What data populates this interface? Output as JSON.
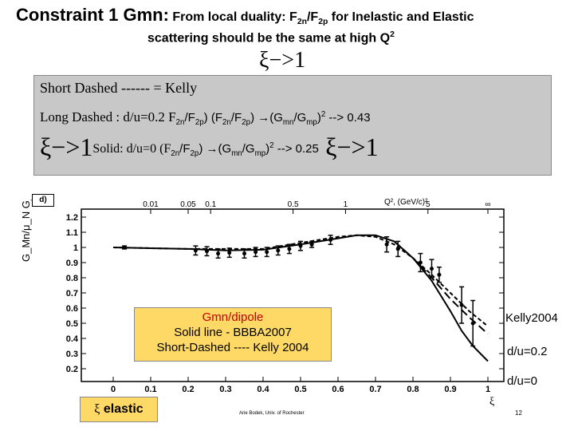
{
  "header": {
    "title_main": "Constraint 1 Gmn:",
    "title_rest": "From local duality: F",
    "sub_2n": "2n",
    "slash_f": "/F",
    "sub_2p": "2p",
    "title_end": " for Inelastic and Elastic",
    "subtitle": "scattering should be the same at high Q",
    "subtitle_sup": "2",
    "xi_arrow": "ξ−>1"
  },
  "info_box": {
    "short_dashed": "Short Dashed ------ = Kelly",
    "long_prefix": "Long Dashed : d/u=0.2 F",
    "long_mid1": "/F",
    "long_mid2": ") (F",
    "long_mid3": "/F",
    "long_mid4": ") →(G",
    "long_mid5": "/G",
    "long_mid6": ")",
    "long_end": " --> 0.43",
    "solid_xi": "ξ−>1",
    "solid_prefix": "Solid:   d/u=0 (F",
    "solid_mid1": "/F",
    "solid_mid2": ") →(G",
    "solid_mid3": "/G",
    "solid_mid4": ")",
    "solid_end": " --> 0.25",
    "solid_xi_end": "ξ−>1",
    "sub_2n": "2n",
    "sub_2p": "2p",
    "sub_mn": "mn",
    "sub_mp": "mp",
    "sup_2": "2"
  },
  "legend": {
    "title": "Gmn/dipole",
    "line1": "Solid line - BBBA2007",
    "line2": "Short-Dashed ---- Kelly 2004"
  },
  "curve_labels": {
    "kelly": "Kelly2004",
    "du02": "d/u=0.2",
    "du0": "d/u=0"
  },
  "xi_elastic": {
    "xi": "ξ",
    "label": " elastic"
  },
  "footer": {
    "credit": "Arie Bodek, Univ. of Rochester",
    "page": "12",
    "xi_axis": "ξ"
  },
  "panel_label": "d)",
  "q2_label": "Q²,  (GeV/c)²",
  "ylabel": "G_Mn/μ_N G_D",
  "colors": {
    "info_box_bg": "#c8c8c8",
    "legend_bg": "#ffd966",
    "legend_title": "#c00000"
  },
  "chart_data": {
    "type": "line",
    "xlabel": "",
    "ylabel": "G_Mn/μ_N G_D",
    "xlim": [
      0,
      1
    ],
    "ylim": [
      0.2,
      1.2
    ],
    "x_ticks": [
      "0",
      "0.1",
      "0.2",
      "0.3",
      "0.4",
      "0.5",
      "0.6",
      "0.7",
      "0.8",
      "0.9",
      "1"
    ],
    "y_ticks": [
      "0.2",
      "0.3",
      "0.4",
      "0.5",
      "0.6",
      "0.7",
      "0.8",
      "0.9",
      "1",
      "1.1",
      "1.2"
    ],
    "top_axis_ticks": [
      {
        "label": "0.01",
        "xi": 0.1
      },
      {
        "label": "0.05",
        "xi": 0.2
      },
      {
        "label": "0.1",
        "xi": 0.26
      },
      {
        "label": "0.5",
        "xi": 0.48
      },
      {
        "label": "1",
        "xi": 0.62
      },
      {
        "label": "5",
        "xi": 0.84
      },
      {
        "label": "∞",
        "xi": 1.0
      }
    ],
    "series": [
      {
        "name": "BBBA2007",
        "style": "solid",
        "x": [
          0.0,
          0.1,
          0.2,
          0.3,
          0.4,
          0.5,
          0.6,
          0.65,
          0.7,
          0.75,
          0.8,
          0.85,
          0.9,
          0.93,
          0.96,
          1.0
        ],
        "y": [
          1.0,
          0.995,
          0.99,
          0.98,
          0.985,
          1.02,
          1.06,
          1.08,
          1.08,
          1.04,
          0.93,
          0.78,
          0.58,
          0.45,
          0.35,
          0.25
        ]
      },
      {
        "name": "Kelly 2004",
        "style": "short-dashed",
        "x": [
          0.0,
          0.2,
          0.4,
          0.5,
          0.6,
          0.65,
          0.7,
          0.75,
          0.8,
          0.85,
          0.9,
          0.95,
          1.0
        ],
        "y": [
          1.0,
          0.99,
          0.99,
          1.03,
          1.07,
          1.08,
          1.07,
          1.02,
          0.93,
          0.82,
          0.7,
          0.58,
          0.48
        ]
      },
      {
        "name": "d/u=0.2",
        "style": "long-dashed",
        "x": [
          0.75,
          0.8,
          0.85,
          0.9,
          0.95,
          1.0
        ],
        "y": [
          1.04,
          0.93,
          0.8,
          0.66,
          0.54,
          0.43
        ]
      }
    ],
    "data_points": {
      "x": [
        0.03,
        0.22,
        0.25,
        0.28,
        0.31,
        0.35,
        0.38,
        0.41,
        0.44,
        0.47,
        0.5,
        0.53,
        0.58,
        0.73,
        0.76,
        0.82,
        0.85,
        0.87,
        0.93,
        0.96
      ],
      "y": [
        1.0,
        0.98,
        0.975,
        0.96,
        0.965,
        0.96,
        0.97,
        0.97,
        0.98,
        0.99,
        1.01,
        1.02,
        1.05,
        1.02,
        0.99,
        0.9,
        0.86,
        0.82,
        0.62,
        0.5
      ],
      "err": [
        0.01,
        0.03,
        0.03,
        0.03,
        0.03,
        0.03,
        0.03,
        0.03,
        0.03,
        0.03,
        0.03,
        0.02,
        0.03,
        0.05,
        0.05,
        0.06,
        0.06,
        0.05,
        0.12,
        0.15
      ]
    }
  }
}
